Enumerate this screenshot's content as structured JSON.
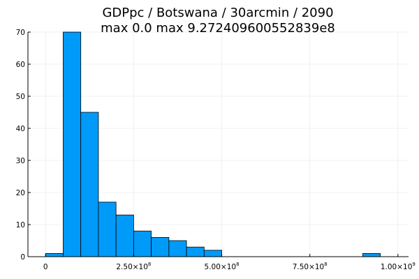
{
  "chart_data": {
    "type": "histogram",
    "title_line1": "GDPpc / Botswana / 30arcmin / 2090",
    "title_line2": "max 0.0  max 9.272409600552839e8",
    "xlabel": "",
    "ylabel": "",
    "bar_color": "#009af9",
    "bin_width": 50000000,
    "bins": [
      {
        "start": 0,
        "end": 50000000,
        "count": 1
      },
      {
        "start": 50000000,
        "end": 100000000,
        "count": 70
      },
      {
        "start": 100000000,
        "end": 150000000,
        "count": 45
      },
      {
        "start": 150000000,
        "end": 200000000,
        "count": 17
      },
      {
        "start": 200000000,
        "end": 250000000,
        "count": 13
      },
      {
        "start": 250000000,
        "end": 300000000,
        "count": 8
      },
      {
        "start": 300000000,
        "end": 350000000,
        "count": 6
      },
      {
        "start": 350000000,
        "end": 400000000,
        "count": 5
      },
      {
        "start": 400000000,
        "end": 450000000,
        "count": 3
      },
      {
        "start": 450000000,
        "end": 500000000,
        "count": 2
      },
      {
        "start": 900000000,
        "end": 950000000,
        "count": 1
      }
    ],
    "xlim": [
      -50000000,
      1030000000
    ],
    "ylim": [
      0,
      70
    ],
    "x_ticks": [
      {
        "value": 0,
        "mantissa": "0",
        "exp": ""
      },
      {
        "value": 250000000,
        "mantissa": "2.50×10",
        "exp": "8"
      },
      {
        "value": 500000000,
        "mantissa": "5.00×10",
        "exp": "8"
      },
      {
        "value": 750000000,
        "mantissa": "7.50×10",
        "exp": "8"
      },
      {
        "value": 1000000000,
        "mantissa": "1.00×10",
        "exp": "9"
      }
    ],
    "y_ticks": [
      0,
      10,
      20,
      30,
      40,
      50,
      60,
      70
    ],
    "grid": true,
    "legend": "none"
  }
}
